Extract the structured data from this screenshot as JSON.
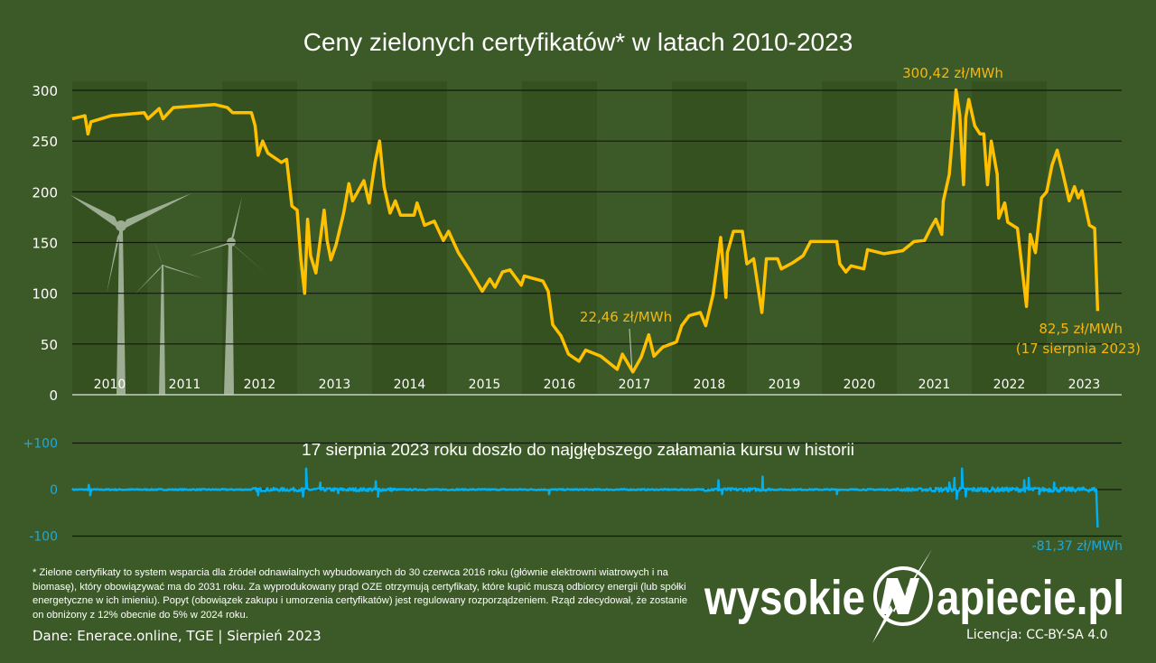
{
  "chart_data": [
    {
      "type": "line",
      "title": "Ceny zielonych certyfikatów* w latach 2010-2023",
      "unit": "zł/MWh",
      "ylim": [
        0,
        300
      ],
      "yticks": [
        "0",
        "50",
        "100",
        "150",
        "200",
        "250",
        "300"
      ],
      "ytick_values": [
        0,
        50,
        100,
        150,
        200,
        250,
        300
      ],
      "xlim": [
        2010,
        2024
      ],
      "categories": [
        "2010",
        "2011",
        "2012",
        "2013",
        "2014",
        "2015",
        "2016",
        "2017",
        "2018",
        "2019",
        "2020",
        "2021",
        "2022",
        "2023"
      ],
      "grid": true,
      "alternating_year_bands": true,
      "line_color": "#ffc000",
      "series": [
        {
          "points": [
            [
              2010.0,
              272
            ],
            [
              2010.17,
              275
            ],
            [
              2010.21,
              257
            ],
            [
              2010.25,
              269
            ],
            [
              2010.52,
              275
            ],
            [
              2010.96,
              278
            ],
            [
              2011.01,
              272
            ],
            [
              2011.16,
              282
            ],
            [
              2011.21,
              272
            ],
            [
              2011.35,
              283
            ],
            [
              2011.9,
              286
            ],
            [
              2012.07,
              283
            ],
            [
              2012.14,
              278
            ],
            [
              2012.39,
              278
            ],
            [
              2012.44,
              265
            ],
            [
              2012.48,
              236
            ],
            [
              2012.54,
              250
            ],
            [
              2012.61,
              238
            ],
            [
              2012.79,
              229
            ],
            [
              2012.86,
              232
            ],
            [
              2012.93,
              186
            ],
            [
              2013.0,
              182
            ],
            [
              2013.05,
              134
            ],
            [
              2013.1,
              100
            ],
            [
              2013.14,
              173
            ],
            [
              2013.18,
              137
            ],
            [
              2013.25,
              120
            ],
            [
              2013.36,
              182
            ],
            [
              2013.4,
              152
            ],
            [
              2013.45,
              133
            ],
            [
              2013.52,
              148
            ],
            [
              2013.62,
              179
            ],
            [
              2013.69,
              208
            ],
            [
              2013.74,
              191
            ],
            [
              2013.89,
              211
            ],
            [
              2013.96,
              189
            ],
            [
              2014.04,
              229
            ],
            [
              2014.1,
              250
            ],
            [
              2014.16,
              205
            ],
            [
              2014.24,
              179
            ],
            [
              2014.31,
              191
            ],
            [
              2014.38,
              177
            ],
            [
              2014.56,
              177
            ],
            [
              2014.6,
              189
            ],
            [
              2014.7,
              167
            ],
            [
              2014.83,
              171
            ],
            [
              2014.95,
              152
            ],
            [
              2015.02,
              161
            ],
            [
              2015.15,
              140
            ],
            [
              2015.3,
              123
            ],
            [
              2015.47,
              102
            ],
            [
              2015.57,
              114
            ],
            [
              2015.64,
              106
            ],
            [
              2015.74,
              121
            ],
            [
              2015.84,
              123
            ],
            [
              2015.99,
              108
            ],
            [
              2016.03,
              117
            ],
            [
              2016.28,
              112
            ],
            [
              2016.35,
              102
            ],
            [
              2016.41,
              69
            ],
            [
              2016.52,
              58
            ],
            [
              2016.62,
              40
            ],
            [
              2016.76,
              33
            ],
            [
              2016.85,
              44
            ],
            [
              2017.05,
              38
            ],
            [
              2017.27,
              25
            ],
            [
              2017.34,
              40
            ],
            [
              2017.48,
              22.46
            ],
            [
              2017.59,
              37
            ],
            [
              2017.69,
              59
            ],
            [
              2017.76,
              38
            ],
            [
              2017.88,
              47
            ],
            [
              2018.06,
              52
            ],
            [
              2018.13,
              68
            ],
            [
              2018.23,
              78
            ],
            [
              2018.38,
              81
            ],
            [
              2018.45,
              68
            ],
            [
              2018.55,
              99
            ],
            [
              2018.65,
              155
            ],
            [
              2018.72,
              96
            ],
            [
              2018.74,
              140
            ],
            [
              2018.82,
              161
            ],
            [
              2018.94,
              161
            ],
            [
              2019.0,
              129
            ],
            [
              2019.09,
              134
            ],
            [
              2019.2,
              81
            ],
            [
              2019.26,
              134
            ],
            [
              2019.41,
              134
            ],
            [
              2019.46,
              124
            ],
            [
              2019.61,
              130
            ],
            [
              2019.75,
              137
            ],
            [
              2019.85,
              151
            ],
            [
              2020.0,
              151
            ],
            [
              2020.2,
              151
            ],
            [
              2020.24,
              129
            ],
            [
              2020.32,
              121
            ],
            [
              2020.39,
              127
            ],
            [
              2020.56,
              124
            ],
            [
              2020.61,
              143
            ],
            [
              2020.83,
              139
            ],
            [
              2021.08,
              142
            ],
            [
              2021.23,
              151
            ],
            [
              2021.37,
              152
            ],
            [
              2021.45,
              164
            ],
            [
              2021.52,
              173
            ],
            [
              2021.6,
              158
            ],
            [
              2021.62,
              191
            ],
            [
              2021.7,
              217
            ],
            [
              2021.75,
              262
            ],
            [
              2021.79,
              300.42
            ],
            [
              2021.84,
              276
            ],
            [
              2021.89,
              207
            ],
            [
              2021.92,
              273
            ],
            [
              2021.96,
              291
            ],
            [
              2022.04,
              265
            ],
            [
              2022.11,
              257
            ],
            [
              2022.16,
              257
            ],
            [
              2022.21,
              207
            ],
            [
              2022.26,
              250
            ],
            [
              2022.34,
              217
            ],
            [
              2022.36,
              174
            ],
            [
              2022.44,
              189
            ],
            [
              2022.48,
              170
            ],
            [
              2022.61,
              164
            ],
            [
              2022.73,
              87
            ],
            [
              2022.78,
              158
            ],
            [
              2022.85,
              140
            ],
            [
              2022.93,
              194
            ],
            [
              2023.0,
              200
            ],
            [
              2023.07,
              226
            ],
            [
              2023.14,
              241
            ],
            [
              2023.2,
              223
            ],
            [
              2023.3,
              191
            ],
            [
              2023.37,
              205
            ],
            [
              2023.42,
              194
            ],
            [
              2023.47,
              201
            ],
            [
              2023.57,
              167
            ],
            [
              2023.64,
              164
            ],
            [
              2023.68,
              82.5
            ]
          ]
        }
      ],
      "annotations": {
        "max": {
          "text": "300,42 zł/MWh",
          "x": 2021.79,
          "y": 300.42
        },
        "min": {
          "text": "22,46 zł/MWh",
          "x": 2017.48,
          "y": 22.46
        },
        "last_value": {
          "text": "82,5 zł/MWh",
          "x": 2023.68,
          "y": 82.5
        },
        "last_date": "(17 sierpnia 2023)"
      }
    },
    {
      "type": "line",
      "ylim": [
        -100,
        100
      ],
      "yticks": [
        "+100",
        "0",
        "-100"
      ],
      "ytick_values": [
        100,
        0,
        -100
      ],
      "xlim": [
        2010,
        2024
      ],
      "line_color": "#00b0f0",
      "subtitle": "17 sierpnia 2023 roku doszło do najgłębszego załamania kursu w historii",
      "series": [
        {
          "spikes": [
            [
              2010.22,
              10
            ],
            [
              2010.24,
              -12
            ],
            [
              2012.48,
              -12
            ],
            [
              2013.08,
              -15
            ],
            [
              2013.12,
              45
            ],
            [
              2013.31,
              15
            ],
            [
              2013.55,
              -8
            ],
            [
              2014.05,
              18
            ],
            [
              2014.08,
              -15
            ],
            [
              2016.36,
              -10
            ],
            [
              2018.62,
              20
            ],
            [
              2018.67,
              -10
            ],
            [
              2019.21,
              28
            ],
            [
              2020.2,
              -10
            ],
            [
              2021.7,
              15
            ],
            [
              2021.77,
              25
            ],
            [
              2021.8,
              -20
            ],
            [
              2021.87,
              45
            ],
            [
              2021.92,
              -15
            ],
            [
              2022.7,
              20
            ],
            [
              2022.76,
              25
            ],
            [
              2022.9,
              -10
            ],
            [
              2023.1,
              15
            ],
            [
              2023.66,
              0
            ],
            [
              2023.68,
              -81.37
            ]
          ]
        }
      ],
      "annotations": {
        "min": {
          "text": "-81,37 zł/MWh",
          "x": 2023.68,
          "y": -81.37
        }
      }
    }
  ],
  "footnote": "* Zielone certyfikaty to system wsparcia dla źródeł odnawialnych wybudowanych do 30 czerwca 2016 roku (głównie elektrowni wiatrowych i na biomasę), który obowiązywać ma do 2031 roku. Za wyprodukowany prąd OZE otrzymują certyfikaty, które kupić muszą odbiorcy energii (lub spółki energetyczne w ich imieniu). Popyt (obowiązek zakupu i umorzenia certyfikatów) jest regulowany rozporządzeniem. Rząd zdecydował, że zostanie on obniżony z 12% obecnie do 5% w 2024 roku.",
  "source": "Dane: Enerace.online, TGE  |  Sierpień 2023",
  "license": "Licencja: CC-BY-SA 4.0",
  "logo": {
    "text_left": "wysokie",
    "text_right": "apiecie.pl",
    "full": "wysokienapiecie.pl"
  },
  "decoration": "wind-turbines-icon",
  "colors": {
    "background": "#3c5a27",
    "band": "#34511f",
    "price_line": "#ffc000",
    "diff_line": "#00b0f0",
    "annotation_yellow": "#f2b715",
    "annotation_blue": "#1fa8dc"
  }
}
